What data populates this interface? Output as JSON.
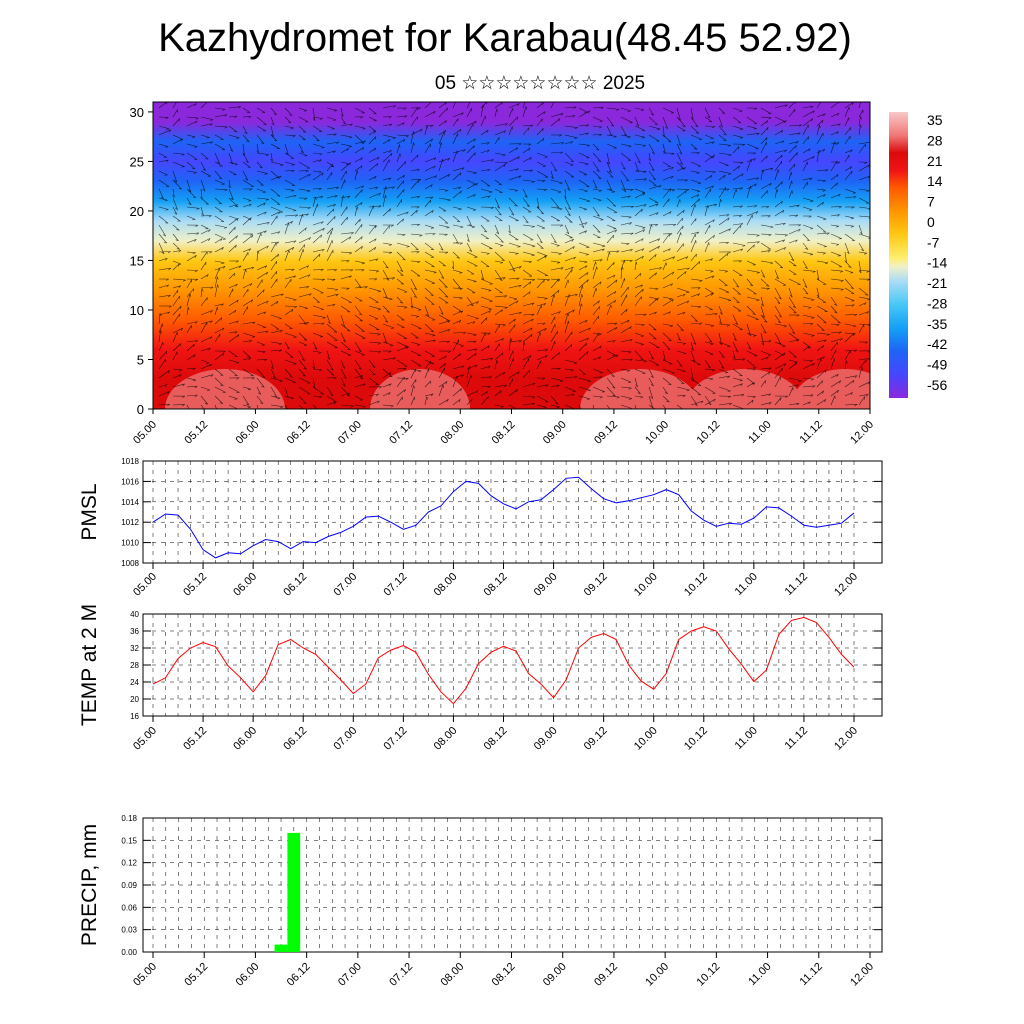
{
  "title": "Kazhydromet for Karabau(48.45 52.92)",
  "subtitle": "05 ☆☆☆☆☆☆☆☆ 2025",
  "chart_data": [
    {
      "type": "heatmap",
      "x_tick_labels": [
        "05.00",
        "05.12",
        "06.00",
        "06.12",
        "07.00",
        "07.12",
        "08.00",
        "08.12",
        "09.00",
        "09.12",
        "10.00",
        "10.12",
        "11.00",
        "11.12",
        "12.00"
      ],
      "y_tick_labels": [
        "0",
        "5",
        "10",
        "15",
        "20",
        "25",
        "30"
      ],
      "ylim": [
        0,
        31
      ],
      "colorbar_labels": [
        "35",
        "28",
        "21",
        "14",
        "7",
        "0",
        "-7",
        "-14",
        "-21",
        "-28",
        "-35",
        "-42",
        "-49",
        "-56"
      ],
      "colorbar_range": [
        -60,
        38
      ],
      "colors": {
        "-60": "#8b28dc",
        "-52": "#4646ff",
        "-44": "#1e64f5",
        "-36": "#14a0f5",
        "-28": "#46c8f5",
        "-20": "#aadcf5",
        "-15": "#f0f0c8",
        "-12": "#ffee6e",
        "-4": "#ffc814",
        "4": "#ff9600",
        "12": "#ff5a00",
        "18": "#f01414",
        "24": "#dc0a0a",
        "30": "#f07878",
        "38": "#f8c8c8"
      },
      "overlay": "wind vectors"
    },
    {
      "type": "line",
      "ylabel": "PMSL",
      "ylim": [
        1008,
        1018
      ],
      "y_tick_labels": [
        "1008",
        "1010",
        "1012",
        "1014",
        "1016",
        "1018"
      ],
      "x_tick_labels": [
        "05.00",
        "05.12",
        "06.00",
        "06.12",
        "07.00",
        "07.12",
        "08.00",
        "08.12",
        "09.00",
        "09.12",
        "10.00",
        "10.12",
        "11.00",
        "11.12",
        "12.00"
      ],
      "x": [
        "05.00",
        "05.03",
        "05.06",
        "05.09",
        "05.12",
        "05.15",
        "05.18",
        "05.21",
        "06.00",
        "06.03",
        "06.06",
        "06.09",
        "06.12",
        "06.15",
        "06.18",
        "06.21",
        "07.00",
        "07.03",
        "07.06",
        "07.09",
        "07.12",
        "07.15",
        "07.18",
        "07.21",
        "08.00",
        "08.03",
        "08.06",
        "08.09",
        "08.12",
        "08.15",
        "08.18",
        "08.21",
        "09.00",
        "09.03",
        "09.06",
        "09.09",
        "09.12",
        "09.15",
        "09.18",
        "09.21",
        "10.00",
        "10.03",
        "10.06",
        "10.09",
        "10.12",
        "10.15",
        "10.18",
        "10.21",
        "11.00",
        "11.03",
        "11.06",
        "11.09",
        "11.12",
        "11.15",
        "11.18",
        "11.21",
        "12.00"
      ],
      "series": [
        {
          "color": "#0000ff",
          "values": [
            1012.0,
            1012.8,
            1012.7,
            1011.3,
            1009.3,
            1008.5,
            1009.0,
            1008.9,
            1009.7,
            1010.3,
            1010.1,
            1009.4,
            1010.1,
            1010.0,
            1010.6,
            1011.0,
            1011.6,
            1012.5,
            1012.6,
            1012.0,
            1011.3,
            1011.7,
            1013.0,
            1013.6,
            1015.0,
            1016.0,
            1015.8,
            1014.6,
            1013.8,
            1013.3,
            1014.0,
            1014.2,
            1015.2,
            1016.3,
            1016.4,
            1015.3,
            1014.3,
            1013.9,
            1014.1,
            1014.4,
            1014.7,
            1015.2,
            1014.7,
            1013.1,
            1012.2,
            1011.6,
            1011.9,
            1011.8,
            1012.4,
            1013.5,
            1013.4,
            1012.6,
            1011.7,
            1011.5,
            1011.7,
            1011.9,
            1012.9
          ]
        }
      ]
    },
    {
      "type": "line",
      "ylabel": "TEMP at 2 M",
      "ylim": [
        16,
        40
      ],
      "y_tick_labels": [
        "16",
        "20",
        "24",
        "28",
        "32",
        "36",
        "40"
      ],
      "x_tick_labels": [
        "05.00",
        "05.12",
        "06.00",
        "06.12",
        "07.00",
        "07.12",
        "08.00",
        "08.12",
        "09.00",
        "09.12",
        "10.00",
        "10.12",
        "11.00",
        "11.12",
        "12.00"
      ],
      "x": [
        "05.00",
        "05.03",
        "05.06",
        "05.09",
        "05.12",
        "05.15",
        "05.18",
        "05.21",
        "06.00",
        "06.03",
        "06.06",
        "06.09",
        "06.12",
        "06.15",
        "06.18",
        "06.21",
        "07.00",
        "07.03",
        "07.06",
        "07.09",
        "07.12",
        "07.15",
        "07.18",
        "07.21",
        "08.00",
        "08.03",
        "08.06",
        "08.09",
        "08.12",
        "08.15",
        "08.18",
        "08.21",
        "09.00",
        "09.03",
        "09.06",
        "09.09",
        "09.12",
        "09.15",
        "09.18",
        "09.21",
        "10.00",
        "10.03",
        "10.06",
        "10.09",
        "10.12",
        "10.15",
        "10.18",
        "10.21",
        "11.00",
        "11.03",
        "11.06",
        "11.09",
        "11.12",
        "11.15",
        "11.18",
        "11.21",
        "12.00"
      ],
      "series": [
        {
          "color": "#ff0000",
          "values": [
            23.5,
            25.0,
            29.5,
            32.0,
            33.3,
            32.3,
            27.8,
            25.0,
            21.7,
            25.5,
            32.8,
            34.0,
            32.0,
            30.5,
            27.5,
            24.5,
            21.3,
            23.5,
            29.7,
            31.5,
            32.6,
            31.0,
            25.8,
            21.7,
            18.9,
            22.5,
            28.3,
            31.0,
            32.4,
            31.3,
            26.0,
            23.5,
            20.3,
            24.5,
            32.0,
            34.5,
            35.4,
            34.0,
            28.0,
            24.2,
            22.3,
            26.0,
            34.0,
            36.0,
            37.0,
            36.0,
            31.8,
            28.2,
            24.1,
            26.8,
            35.2,
            38.5,
            39.2,
            38.0,
            34.5,
            30.5,
            27.5
          ]
        }
      ]
    },
    {
      "type": "bar",
      "ylabel": "PRECIP, mm",
      "ylim": [
        0,
        0.18
      ],
      "y_tick_labels": [
        "0.00",
        "0.03",
        "0.06",
        "0.09",
        "0.12",
        "0.15",
        "0.18"
      ],
      "x_tick_labels": [
        "05.00",
        "05.12",
        "06.00",
        "06.12",
        "07.00",
        "07.12",
        "08.00",
        "08.12",
        "09.00",
        "09.12",
        "10.00",
        "10.12",
        "11.00",
        "11.12",
        "12.00"
      ],
      "categories": [
        "06.06",
        "06.09"
      ],
      "values": [
        0.01,
        0.16
      ],
      "bar_color": "#00ff00"
    }
  ]
}
